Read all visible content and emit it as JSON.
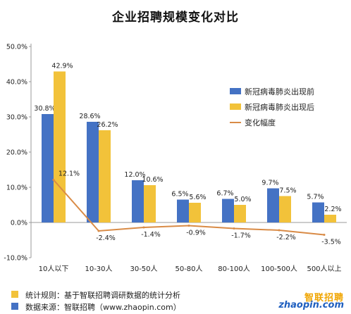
{
  "colors": {
    "before": "#4472C4",
    "after": "#F2C23A",
    "change": "#D98B46",
    "axis": "#999999",
    "grid": "#dddddd"
  },
  "chart_data": {
    "type": "bar",
    "title": "企业招聘规模变化对比",
    "categories": [
      "10人以下",
      "10-30人",
      "30-50人",
      "50-80人",
      "80-100人",
      "100-500人",
      "500人以上"
    ],
    "series": [
      {
        "name": "新冠病毒肺炎出现前",
        "kind": "bar",
        "values": [
          30.8,
          28.6,
          12.0,
          6.5,
          6.7,
          9.7,
          5.7
        ],
        "labels": [
          "30.8%",
          "28.6%",
          "12.0%",
          "6.5%",
          "6.7%",
          "9.7%",
          "5.7%"
        ]
      },
      {
        "name": "新冠病毒肺炎出现后",
        "kind": "bar",
        "values": [
          42.9,
          26.2,
          10.6,
          5.6,
          5.0,
          7.5,
          2.2
        ],
        "labels": [
          "42.9%",
          "26.2%",
          "10.6%",
          "5.6%",
          "5.0%",
          "7.5%",
          "2.2%"
        ]
      },
      {
        "name": "变化幅度",
        "kind": "line",
        "values": [
          12.1,
          -2.4,
          -1.4,
          -0.9,
          -1.7,
          -2.2,
          -3.5
        ],
        "labels": [
          "12.1%",
          "-2.4%",
          "-1.4%",
          "-0.9%",
          "-1.7%",
          "-2.2%",
          "-3.5%"
        ]
      }
    ],
    "ylim": [
      -10,
      50
    ],
    "yticks": [
      "-10.0%",
      "0.0%",
      "10.0%",
      "20.0%",
      "30.0%",
      "40.0%",
      "50.0%"
    ],
    "grid": false,
    "legend_position": "right"
  },
  "footnotes": {
    "rule": "统计规则：基于智联招聘调研数据的统计分析",
    "source": "数据来源：智联招聘（www.zhaopin.com）"
  },
  "brand": {
    "cn": "智联招聘",
    "en": "zhaopin.com",
    "icon": "zhaopin-logo-icon"
  }
}
